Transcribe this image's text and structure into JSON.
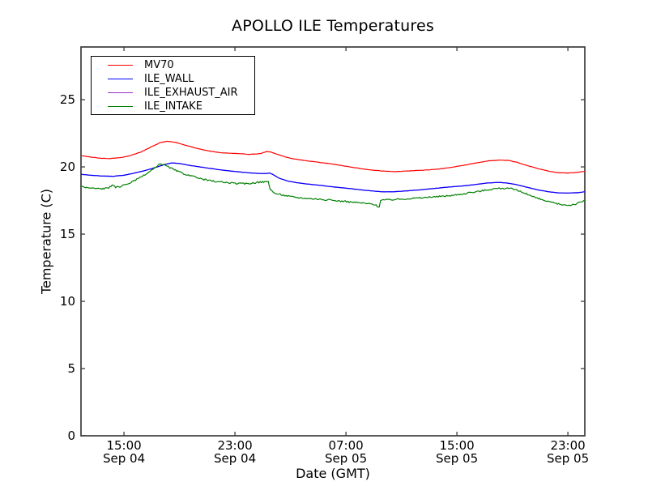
{
  "chart_data": {
    "type": "line",
    "title": "APOLLO ILE Temperatures",
    "xlabel": "Date (GMT)",
    "ylabel": "Temperature (C)",
    "x_unit": "hours from Sep 04 00:00 GMT",
    "xlim": [
      11.9,
      48.22
    ],
    "ylim": [
      0,
      28.92
    ],
    "grid": false,
    "legend_position": "upper left",
    "axis_color": "#3c3c3c",
    "x_ticks": [
      {
        "pos": 15,
        "line1": "15:00",
        "line2": "Sep 04"
      },
      {
        "pos": 23,
        "line1": "23:00",
        "line2": "Sep 04"
      },
      {
        "pos": 31,
        "line1": "07:00",
        "line2": "Sep 05"
      },
      {
        "pos": 39,
        "line1": "15:00",
        "line2": "Sep 05"
      },
      {
        "pos": 47,
        "line1": "23:00",
        "line2": "Sep 05"
      }
    ],
    "y_ticks": [
      {
        "pos": 0,
        "label": "0"
      },
      {
        "pos": 5,
        "label": "5"
      },
      {
        "pos": 10,
        "label": "10"
      },
      {
        "pos": 15,
        "label": "15"
      },
      {
        "pos": 20,
        "label": "20"
      },
      {
        "pos": 25,
        "label": "25"
      }
    ],
    "series": [
      {
        "name": "MV70",
        "color": "#ff0000",
        "noise": 0.012,
        "points": [
          [
            11.9,
            20.85
          ],
          [
            12.5,
            20.75
          ],
          [
            13.2,
            20.65
          ],
          [
            14,
            20.62
          ],
          [
            14.8,
            20.7
          ],
          [
            15.5,
            20.85
          ],
          [
            16.2,
            21.1
          ],
          [
            17,
            21.5
          ],
          [
            17.6,
            21.8
          ],
          [
            18.1,
            21.9
          ],
          [
            18.6,
            21.85
          ],
          [
            19.2,
            21.68
          ],
          [
            20,
            21.45
          ],
          [
            21,
            21.2
          ],
          [
            22,
            21.05
          ],
          [
            23,
            21
          ],
          [
            24,
            20.93
          ],
          [
            24.8,
            20.98
          ],
          [
            25.3,
            21.15
          ],
          [
            25.6,
            21.1
          ],
          [
            26,
            20.95
          ],
          [
            26.6,
            20.75
          ],
          [
            27.2,
            20.6
          ],
          [
            28,
            20.48
          ],
          [
            29,
            20.35
          ],
          [
            30,
            20.22
          ],
          [
            31,
            20.05
          ],
          [
            32,
            19.88
          ],
          [
            33,
            19.75
          ],
          [
            33.8,
            19.68
          ],
          [
            34.6,
            19.65
          ],
          [
            35.5,
            19.7
          ],
          [
            36.5,
            19.75
          ],
          [
            37.5,
            19.82
          ],
          [
            38.5,
            19.95
          ],
          [
            39.5,
            20.12
          ],
          [
            40.5,
            20.32
          ],
          [
            41.3,
            20.45
          ],
          [
            42,
            20.5
          ],
          [
            42.7,
            20.48
          ],
          [
            43.3,
            20.35
          ],
          [
            44,
            20.12
          ],
          [
            44.8,
            19.88
          ],
          [
            45.6,
            19.68
          ],
          [
            46.3,
            19.57
          ],
          [
            47,
            19.55
          ],
          [
            47.6,
            19.58
          ],
          [
            48.22,
            19.68
          ]
        ]
      },
      {
        "name": "ILE_WALL",
        "color": "#0000ff",
        "noise": 0.008,
        "points": [
          [
            11.9,
            19.45
          ],
          [
            12.6,
            19.38
          ],
          [
            13.4,
            19.32
          ],
          [
            14.2,
            19.3
          ],
          [
            15,
            19.38
          ],
          [
            15.8,
            19.55
          ],
          [
            16.6,
            19.75
          ],
          [
            17.4,
            20
          ],
          [
            18,
            20.2
          ],
          [
            18.5,
            20.3
          ],
          [
            19,
            20.25
          ],
          [
            19.8,
            20.1
          ],
          [
            20.8,
            19.95
          ],
          [
            21.8,
            19.8
          ],
          [
            22.8,
            19.68
          ],
          [
            23.8,
            19.58
          ],
          [
            24.6,
            19.52
          ],
          [
            25.2,
            19.5
          ],
          [
            25.5,
            19.55
          ],
          [
            25.7,
            19.45
          ],
          [
            26.2,
            19.15
          ],
          [
            26.8,
            18.95
          ],
          [
            27.5,
            18.82
          ],
          [
            28.3,
            18.72
          ],
          [
            29.2,
            18.62
          ],
          [
            30.2,
            18.5
          ],
          [
            31.2,
            18.4
          ],
          [
            32.2,
            18.28
          ],
          [
            33,
            18.2
          ],
          [
            33.6,
            18.15
          ],
          [
            34.4,
            18.15
          ],
          [
            35.4,
            18.22
          ],
          [
            36.4,
            18.3
          ],
          [
            37.4,
            18.4
          ],
          [
            38.4,
            18.5
          ],
          [
            39.4,
            18.58
          ],
          [
            40.4,
            18.7
          ],
          [
            41.2,
            18.8
          ],
          [
            42,
            18.85
          ],
          [
            42.6,
            18.8
          ],
          [
            43.2,
            18.7
          ],
          [
            44,
            18.5
          ],
          [
            44.8,
            18.3
          ],
          [
            45.6,
            18.15
          ],
          [
            46.3,
            18.07
          ],
          [
            47,
            18.05
          ],
          [
            47.7,
            18.08
          ],
          [
            48.22,
            18.15
          ]
        ]
      },
      {
        "name": "ILE_EXHAUST_AIR",
        "color": "#9932cc",
        "noise": 0.008,
        "points": [
          [
            11.9,
            19.45
          ],
          [
            12.6,
            19.38
          ],
          [
            13.4,
            19.32
          ],
          [
            14.2,
            19.3
          ],
          [
            15,
            19.38
          ],
          [
            15.8,
            19.55
          ],
          [
            16.6,
            19.75
          ],
          [
            17.4,
            20
          ],
          [
            18,
            20.2
          ],
          [
            18.5,
            20.3
          ],
          [
            19,
            20.25
          ],
          [
            19.8,
            20.1
          ],
          [
            20.8,
            19.95
          ],
          [
            21.8,
            19.8
          ],
          [
            22.8,
            19.68
          ],
          [
            23.8,
            19.58
          ],
          [
            24.6,
            19.52
          ],
          [
            25.2,
            19.5
          ],
          [
            25.5,
            19.55
          ],
          [
            25.7,
            19.45
          ],
          [
            26.2,
            19.15
          ],
          [
            26.8,
            18.95
          ],
          [
            27.5,
            18.82
          ],
          [
            28.3,
            18.72
          ],
          [
            29.2,
            18.62
          ],
          [
            30.2,
            18.5
          ],
          [
            31.2,
            18.4
          ],
          [
            32.2,
            18.28
          ],
          [
            33,
            18.2
          ],
          [
            33.6,
            18.15
          ],
          [
            34.4,
            18.15
          ],
          [
            35.4,
            18.22
          ],
          [
            36.4,
            18.3
          ],
          [
            37.4,
            18.4
          ],
          [
            38.4,
            18.5
          ],
          [
            39.4,
            18.58
          ],
          [
            40.4,
            18.7
          ],
          [
            41.2,
            18.8
          ],
          [
            42,
            18.85
          ],
          [
            42.6,
            18.8
          ],
          [
            43.2,
            18.7
          ],
          [
            44,
            18.5
          ],
          [
            44.8,
            18.3
          ],
          [
            45.6,
            18.15
          ],
          [
            46.3,
            18.07
          ],
          [
            47,
            18.05
          ],
          [
            47.7,
            18.08
          ],
          [
            48.22,
            18.15
          ]
        ]
      },
      {
        "name": "ILE_INTAKE",
        "color": "#008000",
        "noise": 0.055,
        "points": [
          [
            11.9,
            18.55
          ],
          [
            12.4,
            18.45
          ],
          [
            12.9,
            18.4
          ],
          [
            13.4,
            18.38
          ],
          [
            13.9,
            18.45
          ],
          [
            14.15,
            18.62
          ],
          [
            14.4,
            18.5
          ],
          [
            14.7,
            18.52
          ],
          [
            15.1,
            18.68
          ],
          [
            15.5,
            18.85
          ],
          [
            16,
            19.1
          ],
          [
            16.5,
            19.4
          ],
          [
            17,
            19.75
          ],
          [
            17.4,
            20.05
          ],
          [
            17.65,
            20.25
          ],
          [
            17.9,
            20.15
          ],
          [
            18.3,
            19.95
          ],
          [
            18.8,
            19.7
          ],
          [
            19.3,
            19.5
          ],
          [
            19.9,
            19.3
          ],
          [
            20.5,
            19.12
          ],
          [
            21.1,
            19
          ],
          [
            21.7,
            18.9
          ],
          [
            22.3,
            18.85
          ],
          [
            23,
            18.78
          ],
          [
            23.7,
            18.75
          ],
          [
            24.3,
            18.8
          ],
          [
            24.9,
            18.88
          ],
          [
            25.4,
            18.9
          ],
          [
            25.55,
            18.3
          ],
          [
            25.8,
            18.08
          ],
          [
            26.1,
            17.98
          ],
          [
            26.6,
            17.88
          ],
          [
            27.1,
            17.78
          ],
          [
            27.7,
            17.7
          ],
          [
            28.4,
            17.65
          ],
          [
            29.1,
            17.6
          ],
          [
            29.9,
            17.52
          ],
          [
            30.7,
            17.45
          ],
          [
            31.5,
            17.38
          ],
          [
            32.3,
            17.3
          ],
          [
            33,
            17.22
          ],
          [
            33.25,
            17.1
          ],
          [
            33.4,
            17.02
          ],
          [
            33.5,
            17.55
          ],
          [
            34,
            17.55
          ],
          [
            34.8,
            17.6
          ],
          [
            35.6,
            17.65
          ],
          [
            36.4,
            17.7
          ],
          [
            37.2,
            17.75
          ],
          [
            38,
            17.82
          ],
          [
            38.8,
            17.9
          ],
          [
            39.6,
            18.02
          ],
          [
            40.4,
            18.15
          ],
          [
            41.1,
            18.28
          ],
          [
            41.7,
            18.38
          ],
          [
            42.3,
            18.42
          ],
          [
            42.9,
            18.38
          ],
          [
            43.5,
            18.2
          ],
          [
            44.1,
            17.95
          ],
          [
            44.7,
            17.7
          ],
          [
            45.3,
            17.5
          ],
          [
            45.9,
            17.33
          ],
          [
            46.5,
            17.2
          ],
          [
            47.1,
            17.15
          ],
          [
            47.6,
            17.25
          ],
          [
            48.22,
            17.5
          ]
        ]
      }
    ]
  }
}
